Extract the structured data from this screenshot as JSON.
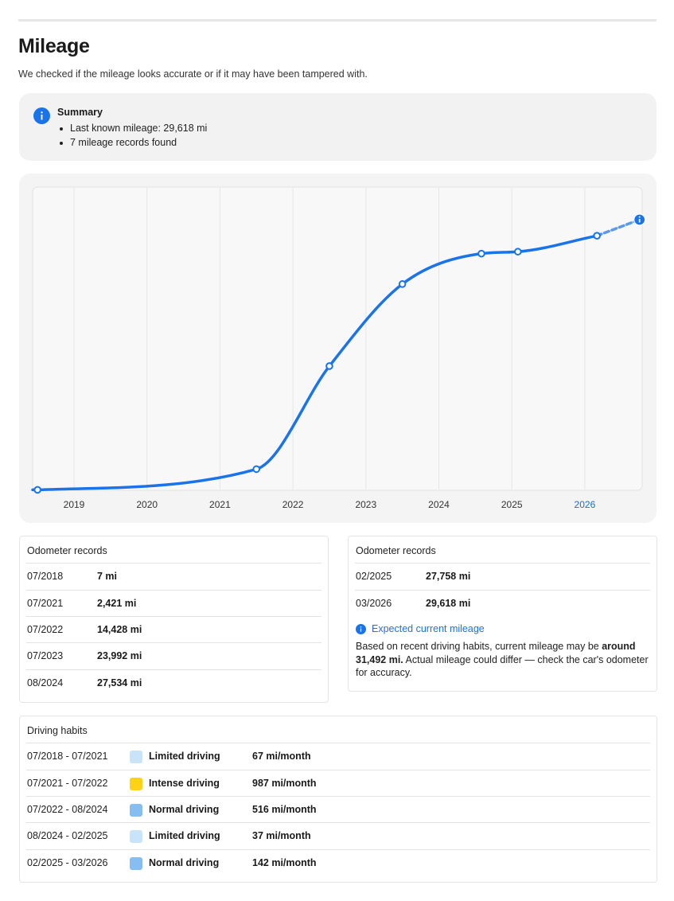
{
  "page": {
    "title": "Mileage",
    "subtitle": "We checked if the mileage looks accurate or if it may have been tampered with."
  },
  "summary": {
    "title": "Summary",
    "items": [
      "Last known mileage: 29,618 mi",
      "7 mileage records found"
    ]
  },
  "chart_data": {
    "type": "line",
    "title": "",
    "xlabel": "",
    "ylabel": "",
    "x_ticks": [
      "2019",
      "2020",
      "2021",
      "2022",
      "2023",
      "2024",
      "2025",
      "2026"
    ],
    "highlight_tick": "2026",
    "grid": "vertical",
    "series": [
      {
        "values": [
          {
            "date": "2018-07",
            "mi": 7
          },
          {
            "date": "2021-07",
            "mi": 2421
          },
          {
            "date": "2022-07",
            "mi": 14428
          },
          {
            "date": "2023-07",
            "mi": 23992
          },
          {
            "date": "2024-08",
            "mi": 27534
          },
          {
            "date": "2025-02",
            "mi": 27758
          },
          {
            "date": "2026-03",
            "mi": 29618
          }
        ]
      }
    ],
    "projection": {
      "date": "2026-10",
      "mi": 31492,
      "style": "dashed"
    },
    "colors": {
      "line": "#1a73e8",
      "projection": "#5b9ae8"
    }
  },
  "odometer_left": {
    "title": "Odometer records",
    "rows": [
      {
        "date": "07/2018",
        "mileage": "7 mi"
      },
      {
        "date": "07/2021",
        "mileage": "2,421 mi"
      },
      {
        "date": "07/2022",
        "mileage": "14,428 mi"
      },
      {
        "date": "07/2023",
        "mileage": "23,992 mi"
      },
      {
        "date": "08/2024",
        "mileage": "27,534 mi"
      }
    ]
  },
  "odometer_right": {
    "title": "Odometer records",
    "rows": [
      {
        "date": "02/2025",
        "mileage": "27,758 mi"
      },
      {
        "date": "03/2026",
        "mileage": "29,618 mi"
      }
    ],
    "expected": {
      "title": "Expected current mileage",
      "text_before": "Based on recent driving habits, current mileage may be ",
      "text_bold": "around 31,492 mi.",
      "text_after": " Actual mileage could differ — check the car's odometer for accuracy."
    }
  },
  "driving_habits": {
    "title": "Driving habits",
    "rows": [
      {
        "period": "07/2018 - 07/2021",
        "label": "Limited driving",
        "rate": "67 mi/month",
        "color": "#c9e3f8"
      },
      {
        "period": "07/2021 - 07/2022",
        "label": "Intense driving",
        "rate": "987 mi/month",
        "color": "#ffd21a"
      },
      {
        "period": "07/2022 - 08/2024",
        "label": "Normal driving",
        "rate": "516 mi/month",
        "color": "#86bef2"
      },
      {
        "period": "08/2024 - 02/2025",
        "label": "Limited driving",
        "rate": "37 mi/month",
        "color": "#c9e3f8"
      },
      {
        "period": "02/2025 - 03/2026",
        "label": "Normal driving",
        "rate": "142 mi/month",
        "color": "#86bef2"
      }
    ]
  },
  "icons": {
    "info": "info-icon"
  }
}
